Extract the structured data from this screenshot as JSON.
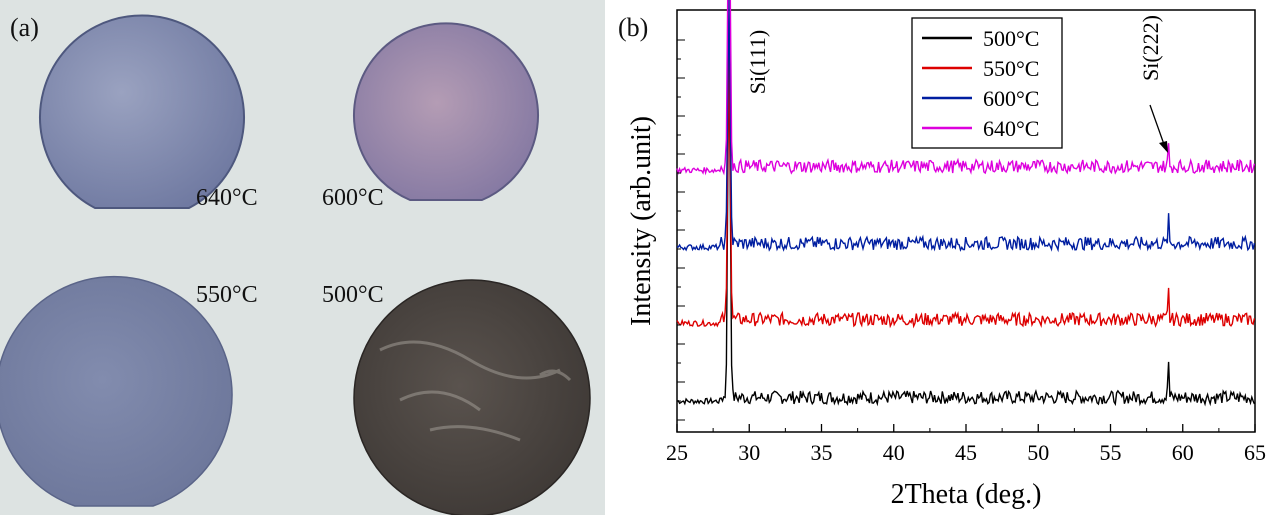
{
  "panel_a": {
    "label": "(a)",
    "wafers": [
      {
        "label": "640°C",
        "tone": "#8a93b4",
        "edge": "#505a82"
      },
      {
        "label": "600°C",
        "tone": "#a08ea8",
        "edge": "#6a6080"
      },
      {
        "label": "550°C",
        "tone": "#7c86a8",
        "edge": "#5a6488"
      },
      {
        "label": "500°C",
        "tone": "#4a4440",
        "edge": "#2a2624"
      }
    ],
    "background": "#dde4e4"
  },
  "panel_b": {
    "label": "(b)",
    "annotations": {
      "si111": "Si(111)",
      "si222": "Si(222)"
    }
  },
  "chart_data": {
    "type": "line",
    "xlabel": "2Theta (deg.)",
    "ylabel": "Intensity (arb.unit)",
    "xlim": [
      25,
      65
    ],
    "xticks": [
      25,
      30,
      35,
      40,
      45,
      50,
      55,
      60,
      65
    ],
    "legend_position": "top-center",
    "series": [
      {
        "name": "500°C",
        "color": "#000000",
        "peaks": [
          {
            "x": 28.6,
            "y": 7.6
          },
          {
            "x": 59.0,
            "y": 0.9
          }
        ]
      },
      {
        "name": "550°C",
        "color": "#dd0000",
        "peaks": [
          {
            "x": 28.6,
            "y": 5.9
          },
          {
            "x": 59.0,
            "y": 0.7
          }
        ]
      },
      {
        "name": "600°C",
        "color": "#001ea0",
        "peaks": [
          {
            "x": 28.6,
            "y": 5.3
          },
          {
            "x": 59.0,
            "y": 0.6
          }
        ]
      },
      {
        "name": "640°C",
        "color": "#dd00dd",
        "peaks": [
          {
            "x": 28.6,
            "y": 6.2
          },
          {
            "x": 59.0,
            "y": 0.5
          }
        ]
      }
    ]
  }
}
